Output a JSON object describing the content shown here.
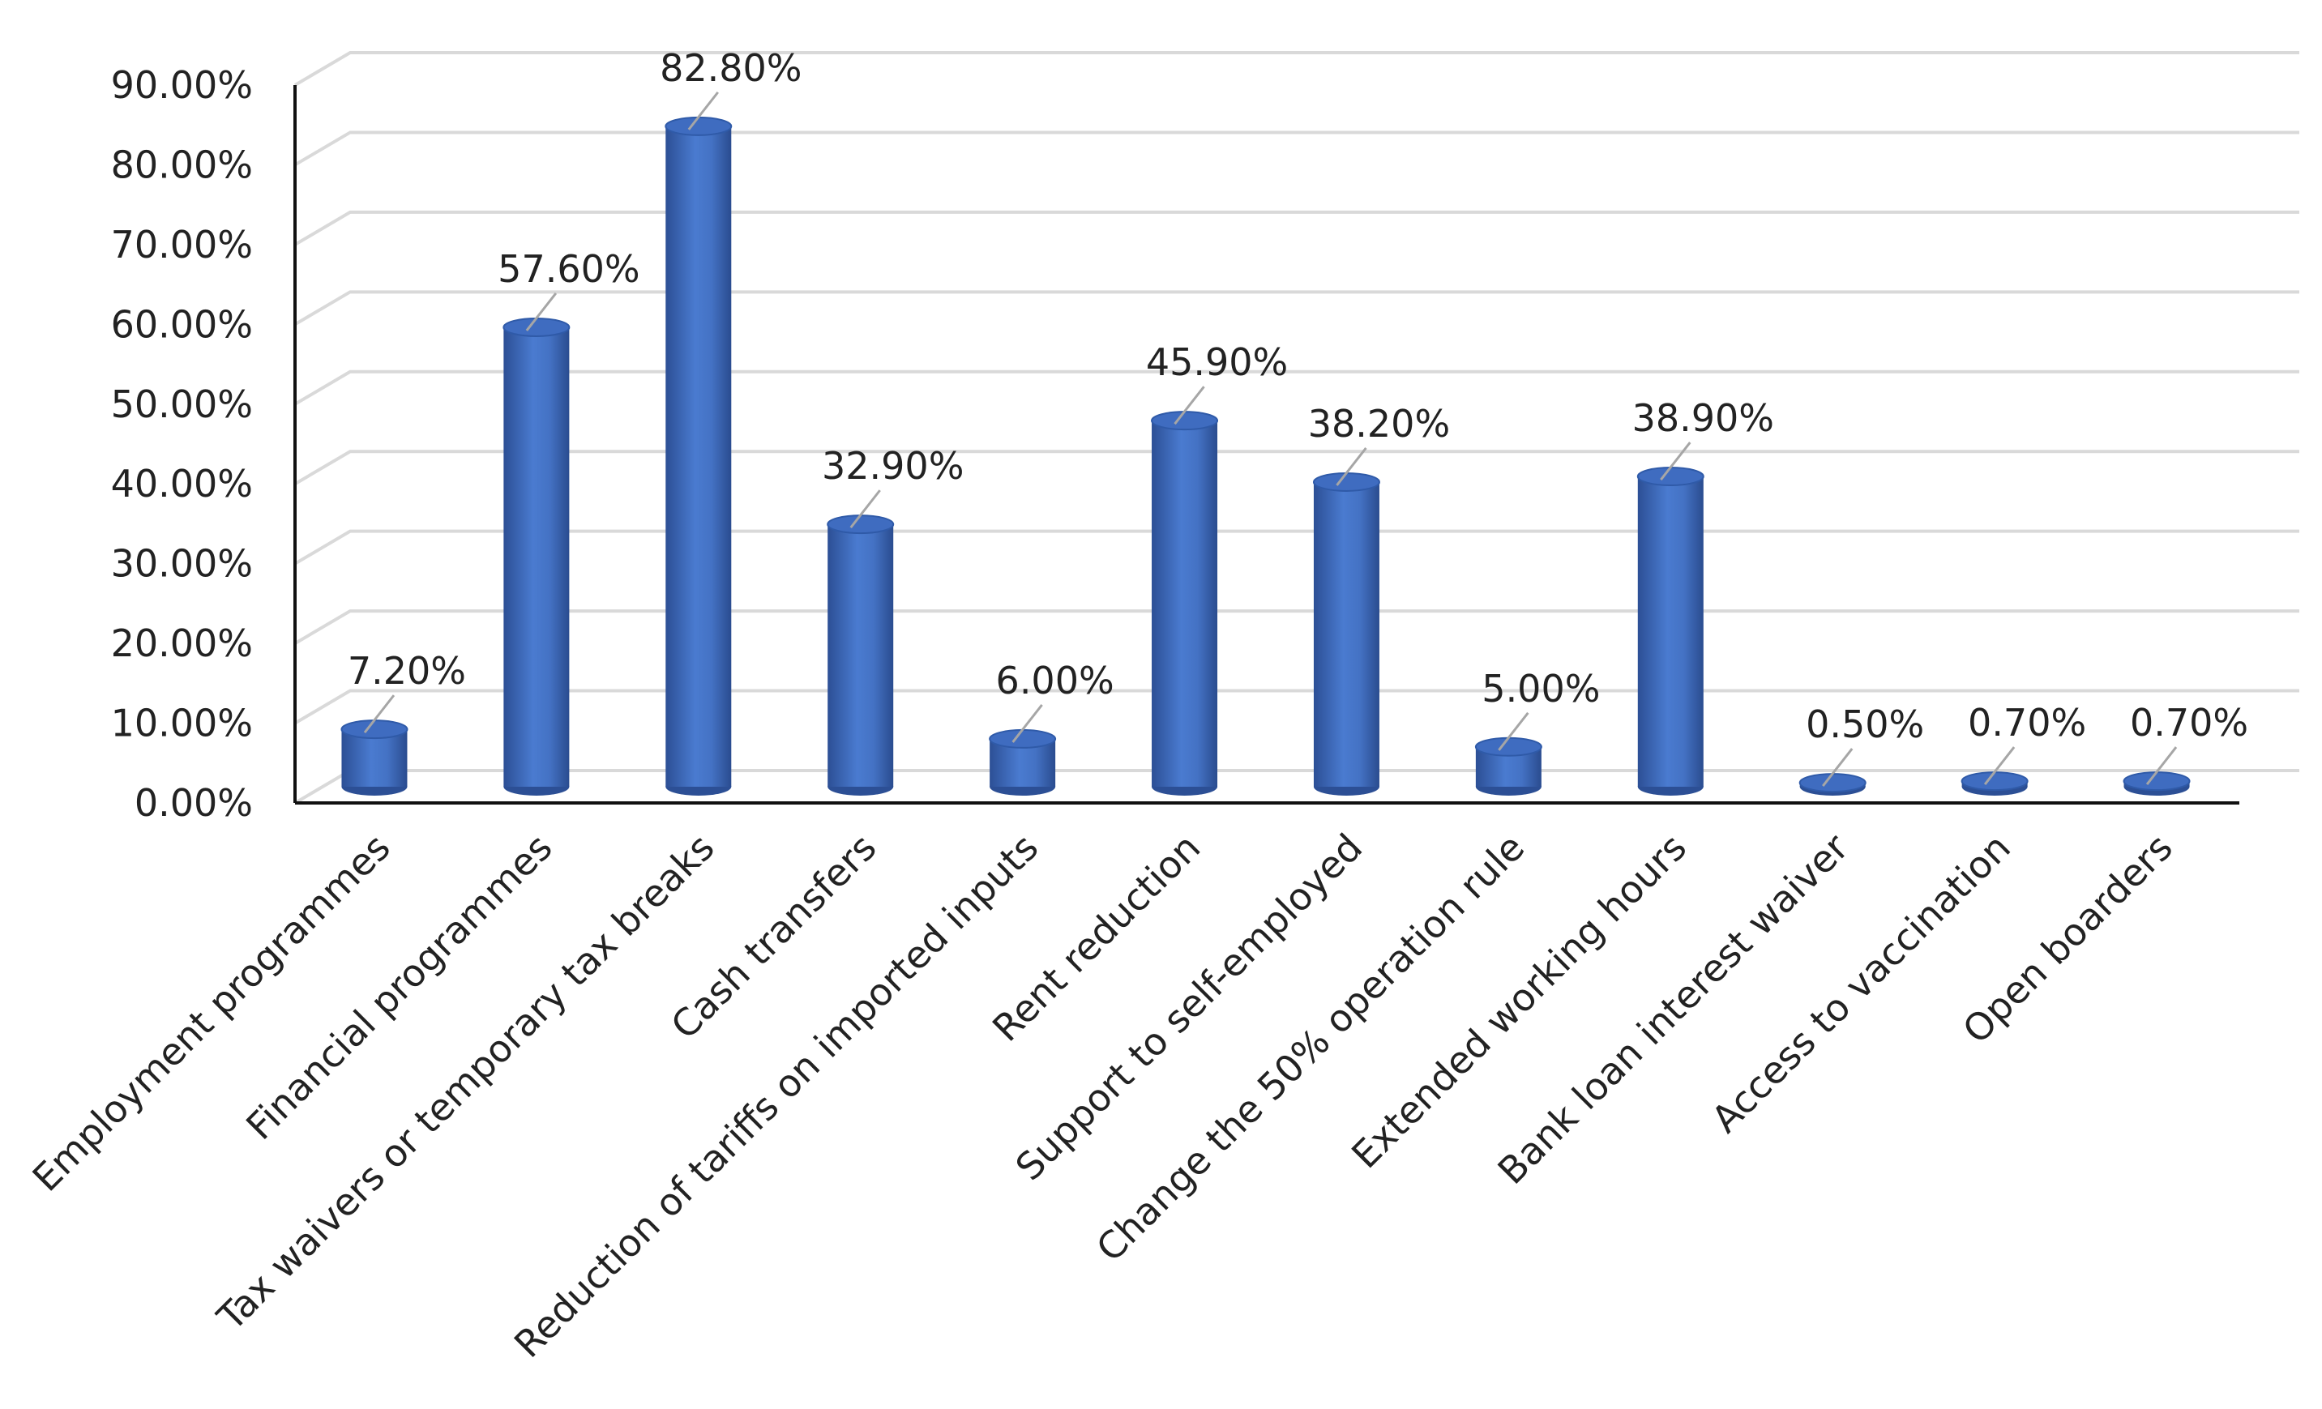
{
  "chart_data": {
    "type": "bar",
    "style": "3d-cylinder",
    "title": "",
    "xlabel": "",
    "ylabel": "",
    "ylim": [
      0,
      90
    ],
    "yticks": [
      "0.00%",
      "10.00%",
      "20.00%",
      "30.00%",
      "40.00%",
      "50.00%",
      "60.00%",
      "70.00%",
      "80.00%",
      "90.00%"
    ],
    "grid": true,
    "legend": "none",
    "bar_color": "#4472c4",
    "categories": [
      "Employment programmes",
      "Financial programmes",
      "Tax waivers or temporary tax breaks",
      "Cash transfers",
      "Reduction of tariffs on imported inputs",
      "Rent reduction",
      "Support to self-employed",
      "Change the 50% operation rule",
      "Extended working hours",
      "Bank loan interest waiver",
      "Access to vaccination",
      "Open boarders"
    ],
    "values": [
      7.2,
      57.6,
      82.8,
      32.9,
      6.0,
      45.9,
      38.2,
      5.0,
      38.9,
      0.5,
      0.7,
      0.7
    ],
    "data_labels": [
      "7.20%",
      "57.60%",
      "82.80%",
      "32.90%",
      "6.00%",
      "45.90%",
      "38.20%",
      "5.00%",
      "38.90%",
      "0.50%",
      "0.70%",
      "0.70%"
    ]
  }
}
